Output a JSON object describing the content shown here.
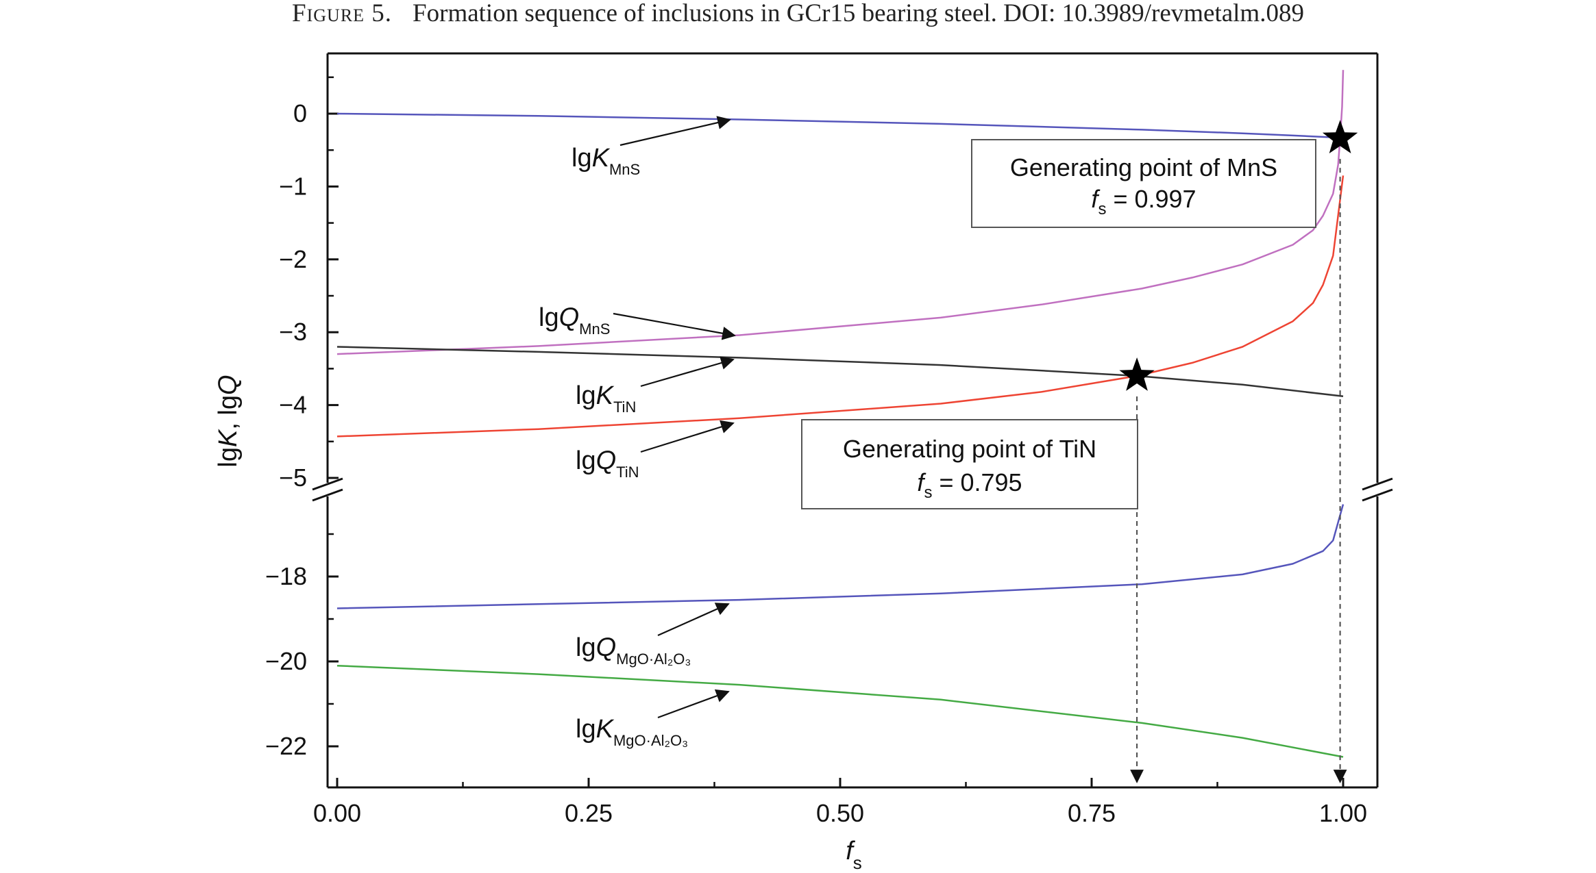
{
  "caption": {
    "label": "Figure 5.",
    "text": "Formation sequence of inclusions in GCr15 bearing steel. DOI: 10.3989/revmetalm.089"
  },
  "chart_data": {
    "type": "line",
    "xlabel": "f_s",
    "ylabel": "lgK, lgQ",
    "xlim": [
      0.0,
      1.0
    ],
    "x_ticks": [
      "0.00",
      "0.25",
      "0.50",
      "0.75",
      "1.00"
    ],
    "broken_y_axis": true,
    "upper_panel": {
      "ylim": [
        -5,
        0.6
      ],
      "y_ticks": [
        "0",
        "−1",
        "−2",
        "−3",
        "−4",
        "−5"
      ]
    },
    "lower_panel": {
      "ylim": [
        -23,
        -16
      ],
      "y_ticks": [
        "−18",
        "−20",
        "−22"
      ]
    },
    "series": [
      {
        "name": "lgK_MnS",
        "label_main": "lgK",
        "label_sub": "MnS",
        "color": "#5555bb",
        "panel": "upper",
        "x": [
          0,
          0.2,
          0.4,
          0.6,
          0.8,
          0.9,
          0.95,
          0.997,
          1.0
        ],
        "y": [
          0.0,
          -0.03,
          -0.08,
          -0.14,
          -0.22,
          -0.27,
          -0.3,
          -0.33,
          -0.34
        ]
      },
      {
        "name": "lgQ_MnS",
        "label_main": "lgQ",
        "label_sub": "MnS",
        "color": "#c070c0",
        "panel": "upper",
        "x": [
          0,
          0.2,
          0.4,
          0.6,
          0.7,
          0.8,
          0.85,
          0.9,
          0.95,
          0.97,
          0.98,
          0.99,
          0.995,
          0.997,
          0.999,
          1.0
        ],
        "y": [
          -3.3,
          -3.19,
          -3.04,
          -2.8,
          -2.62,
          -2.4,
          -2.25,
          -2.07,
          -1.8,
          -1.6,
          -1.4,
          -1.1,
          -0.7,
          -0.34,
          0.1,
          0.6
        ]
      },
      {
        "name": "lgK_TiN",
        "label_main": "lgK",
        "label_sub": "TiN",
        "color": "#333333",
        "panel": "upper",
        "x": [
          0,
          0.2,
          0.4,
          0.6,
          0.795,
          0.9,
          1.0
        ],
        "y": [
          -3.2,
          -3.27,
          -3.35,
          -3.45,
          -3.6,
          -3.72,
          -3.88
        ]
      },
      {
        "name": "lgQ_TiN",
        "label_main": "lgQ",
        "label_sub": "TiN",
        "color": "#ee4433",
        "panel": "upper",
        "x": [
          0,
          0.2,
          0.4,
          0.6,
          0.7,
          0.795,
          0.85,
          0.9,
          0.95,
          0.97,
          0.98,
          0.99,
          1.0
        ],
        "y": [
          -4.43,
          -4.33,
          -4.18,
          -3.98,
          -3.82,
          -3.6,
          -3.42,
          -3.2,
          -2.85,
          -2.6,
          -2.35,
          -1.95,
          -0.85
        ]
      },
      {
        "name": "lgQ_MgO·Al2O3",
        "label_main": "lgQ",
        "label_sub": "MgO·Al₂O₃",
        "color": "#5555bb",
        "panel": "lower",
        "x": [
          0,
          0.2,
          0.4,
          0.6,
          0.8,
          0.9,
          0.95,
          0.98,
          0.99,
          1.0
        ],
        "y": [
          -18.75,
          -18.65,
          -18.55,
          -18.4,
          -18.18,
          -17.95,
          -17.7,
          -17.4,
          -17.15,
          -16.3
        ]
      },
      {
        "name": "lgK_MgO·Al2O3",
        "label_main": "lgK",
        "label_sub": "MgO·Al₂O₃",
        "color": "#44aa44",
        "panel": "lower",
        "x": [
          0,
          0.2,
          0.4,
          0.6,
          0.8,
          0.9,
          1.0
        ],
        "y": [
          -20.1,
          -20.3,
          -20.55,
          -20.9,
          -21.45,
          -21.8,
          -22.25
        ]
      }
    ],
    "annotations": [
      {
        "line1": "Generating point of MnS",
        "line2_var": "f",
        "line2_sub": "s",
        "line2_value": " = 0.997",
        "point": {
          "x": 0.997,
          "y": -0.34
        }
      },
      {
        "line1": "Generating point of TiN",
        "line2_var": "f",
        "line2_sub": "s",
        "line2_value": " = 0.795",
        "point": {
          "x": 0.795,
          "y": -3.6
        }
      }
    ]
  }
}
